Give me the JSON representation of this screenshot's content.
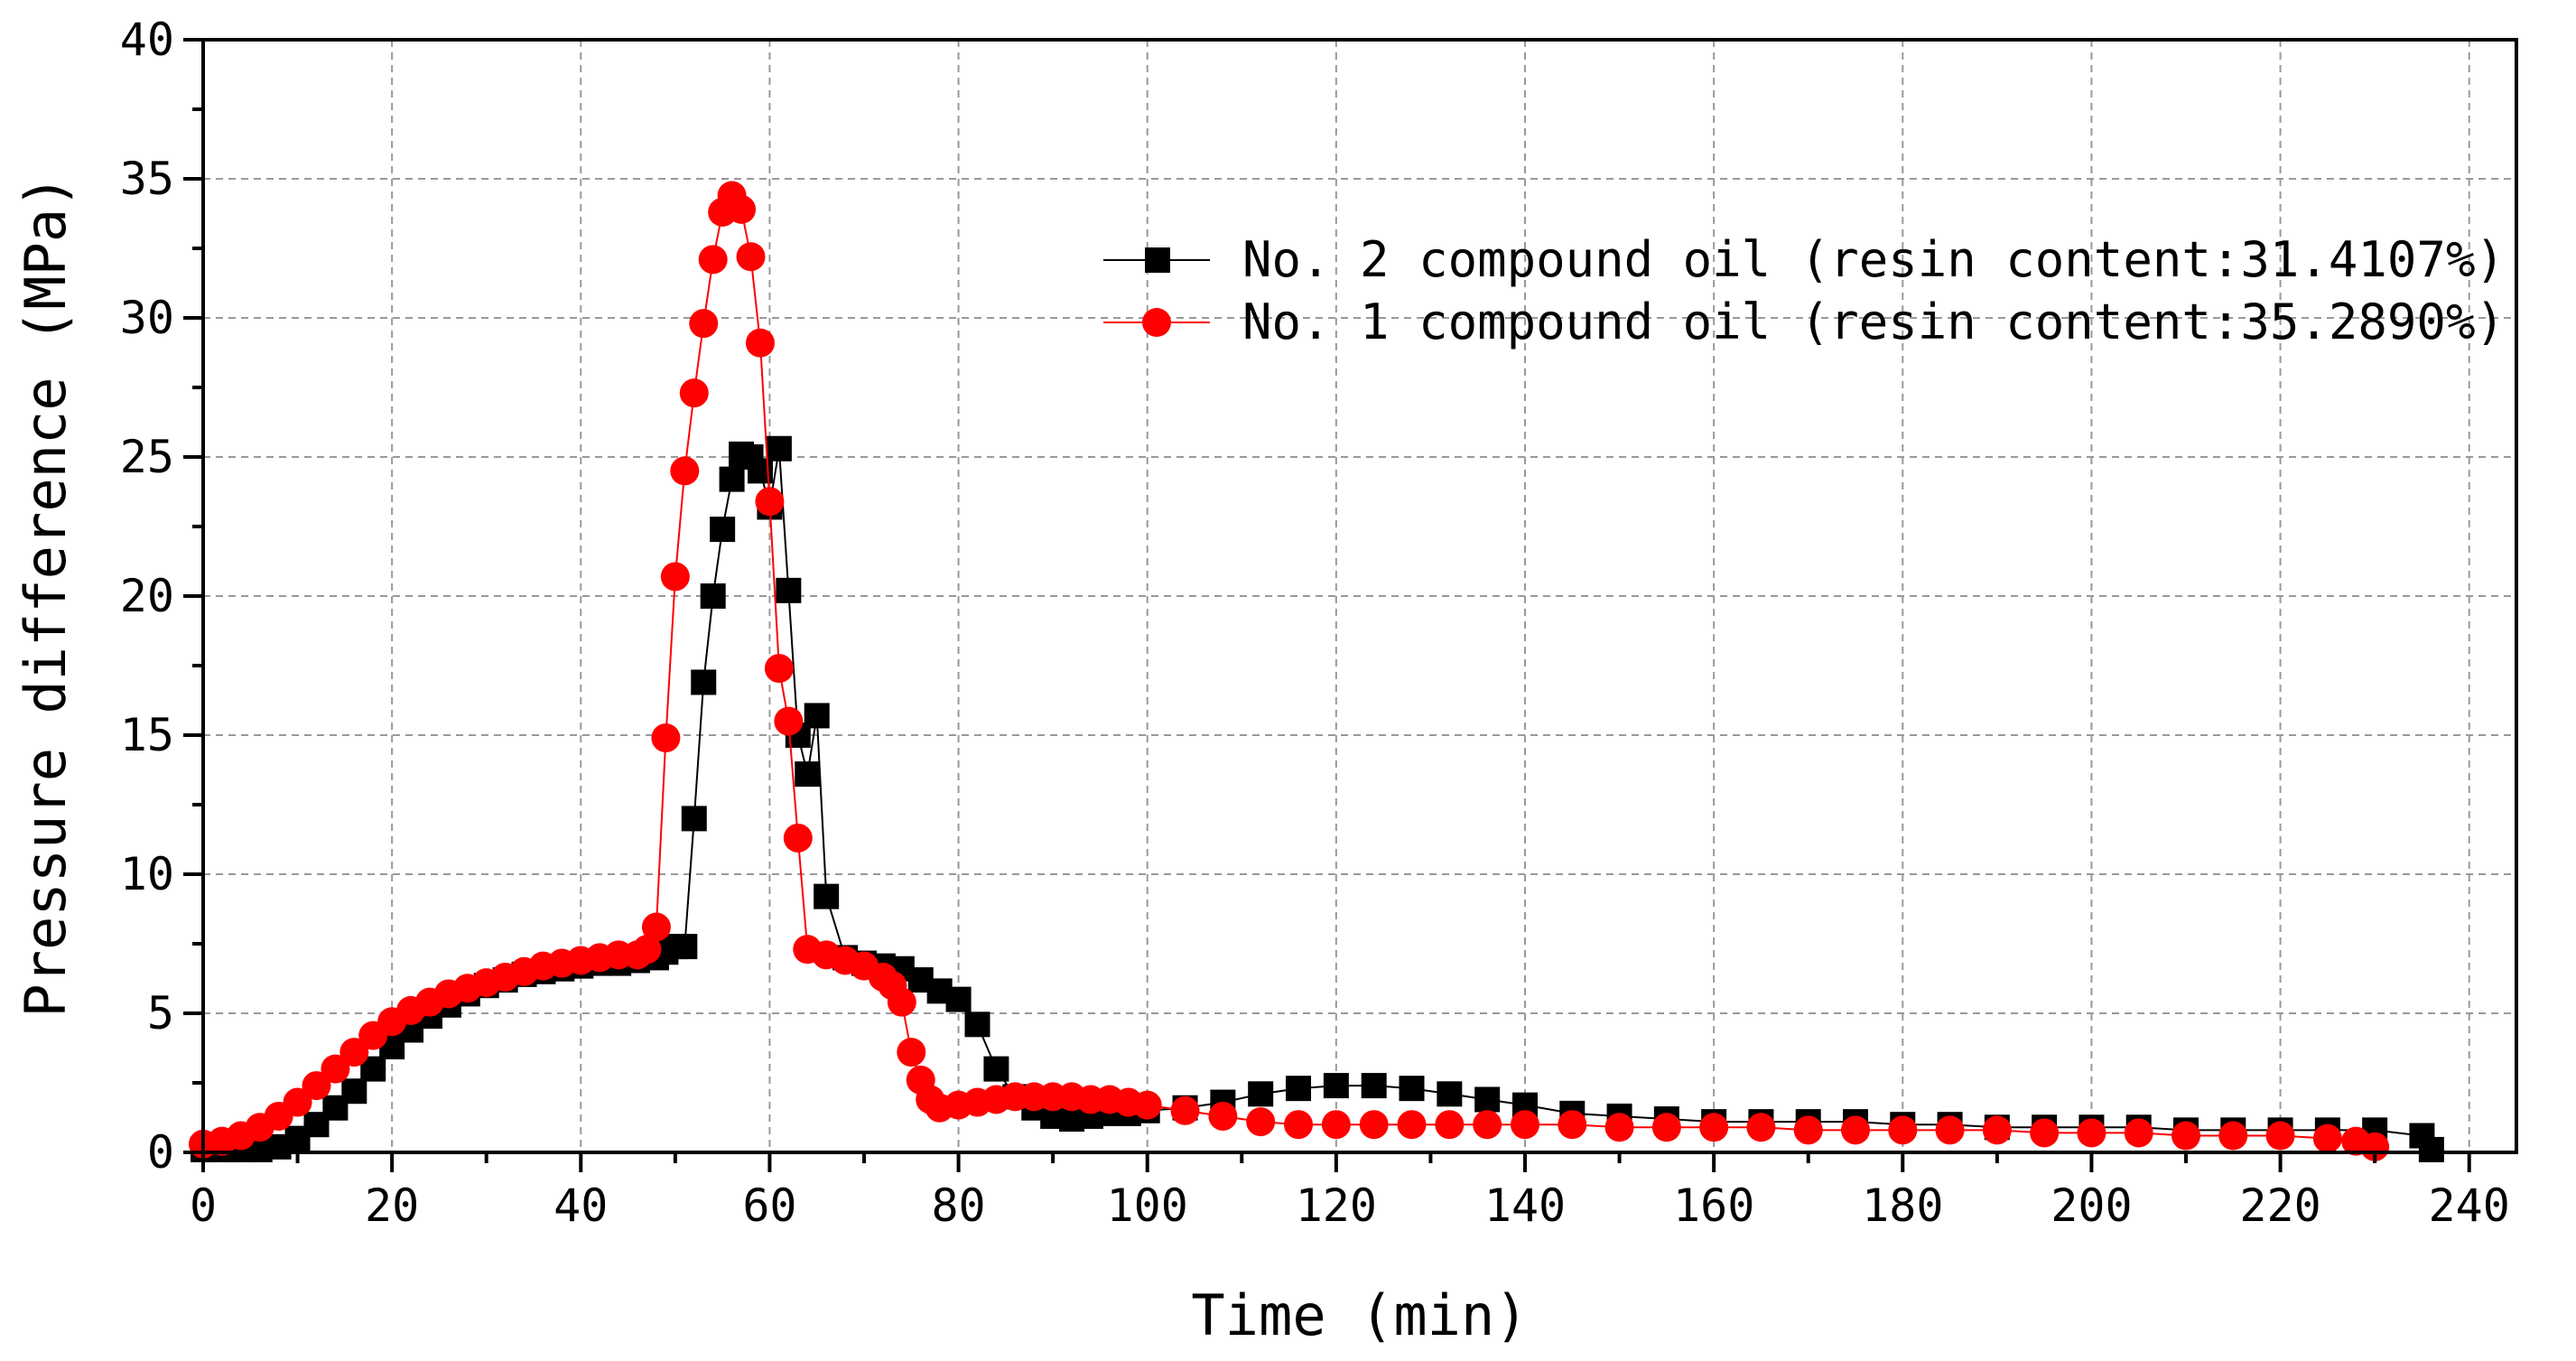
{
  "chart_data": {
    "type": "line",
    "title": "",
    "xlabel": "Time (min)",
    "ylabel": "Pressure difference (MPa)",
    "xlim": [
      0,
      245
    ],
    "ylim": [
      0,
      40
    ],
    "x_ticks": [
      0,
      20,
      40,
      60,
      80,
      100,
      120,
      140,
      160,
      180,
      200,
      220,
      240
    ],
    "y_ticks": [
      0,
      5,
      10,
      15,
      20,
      25,
      30,
      35,
      40
    ],
    "x_tick_labels": [
      "0",
      "20",
      "40",
      "60",
      "80",
      "100",
      "120",
      "140",
      "160",
      "180",
      "200",
      "220",
      "240"
    ],
    "y_tick_labels": [
      "0",
      "5",
      "10",
      "15",
      "20",
      "25",
      "30",
      "35",
      "40"
    ],
    "grid": true,
    "legend_position": "top-right",
    "colors": {
      "series_2": "#000000",
      "series_1": "#ff0000",
      "grid": "#999999"
    },
    "series": [
      {
        "name": "No. 2 compound oil (resin content:31.4107%)",
        "marker": "square",
        "color": "#000000",
        "x": [
          0,
          2,
          4,
          6,
          8,
          10,
          12,
          14,
          16,
          18,
          20,
          22,
          24,
          26,
          28,
          30,
          32,
          34,
          36,
          38,
          40,
          42,
          44,
          46,
          48,
          49,
          50,
          51,
          52,
          53,
          54,
          55,
          56,
          57,
          58,
          59,
          60,
          61,
          62,
          63,
          64,
          65,
          66,
          68,
          70,
          72,
          74,
          76,
          78,
          80,
          82,
          84,
          86,
          88,
          90,
          92,
          94,
          96,
          98,
          100,
          104,
          108,
          112,
          116,
          120,
          124,
          128,
          132,
          136,
          140,
          145,
          150,
          155,
          160,
          165,
          170,
          175,
          180,
          185,
          190,
          195,
          200,
          205,
          210,
          215,
          220,
          225,
          230,
          235,
          236
        ],
        "y": [
          0.1,
          0.1,
          0.1,
          0.1,
          0.2,
          0.5,
          1.0,
          1.6,
          2.2,
          3.0,
          3.8,
          4.4,
          4.9,
          5.3,
          5.7,
          6.0,
          6.2,
          6.4,
          6.5,
          6.6,
          6.7,
          6.8,
          6.8,
          6.9,
          7.0,
          7.2,
          7.4,
          7.4,
          12.0,
          16.9,
          20.0,
          22.4,
          24.2,
          25.1,
          25.0,
          24.5,
          23.2,
          25.3,
          20.2,
          15.0,
          13.6,
          15.7,
          9.2,
          7.0,
          6.8,
          6.7,
          6.6,
          6.2,
          5.8,
          5.5,
          4.6,
          3.0,
          2.0,
          1.6,
          1.3,
          1.2,
          1.3,
          1.4,
          1.4,
          1.5,
          1.6,
          1.8,
          2.1,
          2.3,
          2.4,
          2.4,
          2.3,
          2.1,
          1.9,
          1.7,
          1.4,
          1.3,
          1.2,
          1.1,
          1.1,
          1.1,
          1.1,
          1.0,
          1.0,
          0.9,
          0.9,
          0.9,
          0.9,
          0.8,
          0.8,
          0.8,
          0.8,
          0.8,
          0.6,
          0.1
        ]
      },
      {
        "name": "No. 1 compound oil (resin content:35.2890%)",
        "marker": "circle",
        "color": "#ff0000",
        "x": [
          0,
          2,
          4,
          6,
          8,
          10,
          12,
          14,
          16,
          18,
          20,
          22,
          24,
          26,
          28,
          30,
          32,
          34,
          36,
          38,
          40,
          42,
          44,
          46,
          47,
          48,
          49,
          50,
          51,
          52,
          53,
          54,
          55,
          56,
          57,
          58,
          59,
          60,
          61,
          62,
          63,
          64,
          66,
          68,
          70,
          72,
          73,
          74,
          75,
          76,
          77,
          78,
          80,
          82,
          84,
          86,
          88,
          90,
          92,
          94,
          96,
          98,
          100,
          104,
          108,
          112,
          116,
          120,
          124,
          128,
          132,
          136,
          140,
          145,
          150,
          155,
          160,
          165,
          170,
          175,
          180,
          185,
          190,
          195,
          200,
          205,
          210,
          215,
          220,
          225,
          228,
          230
        ],
        "y": [
          0.3,
          0.4,
          0.6,
          0.9,
          1.3,
          1.8,
          2.4,
          3.0,
          3.6,
          4.2,
          4.7,
          5.1,
          5.4,
          5.7,
          5.9,
          6.1,
          6.3,
          6.5,
          6.7,
          6.8,
          6.9,
          7.0,
          7.1,
          7.1,
          7.3,
          8.1,
          14.9,
          20.7,
          24.5,
          27.3,
          29.8,
          32.1,
          33.8,
          34.4,
          33.9,
          32.2,
          29.1,
          23.4,
          17.4,
          15.5,
          11.3,
          7.3,
          7.1,
          6.9,
          6.7,
          6.3,
          6.0,
          5.4,
          3.6,
          2.6,
          1.9,
          1.6,
          1.7,
          1.8,
          1.9,
          2.0,
          2.0,
          2.0,
          2.0,
          1.9,
          1.9,
          1.8,
          1.7,
          1.5,
          1.3,
          1.1,
          1.0,
          1.0,
          1.0,
          1.0,
          1.0,
          1.0,
          1.0,
          1.0,
          0.9,
          0.9,
          0.9,
          0.9,
          0.8,
          0.8,
          0.8,
          0.8,
          0.8,
          0.7,
          0.7,
          0.7,
          0.6,
          0.6,
          0.6,
          0.5,
          0.4,
          0.2
        ]
      }
    ]
  }
}
